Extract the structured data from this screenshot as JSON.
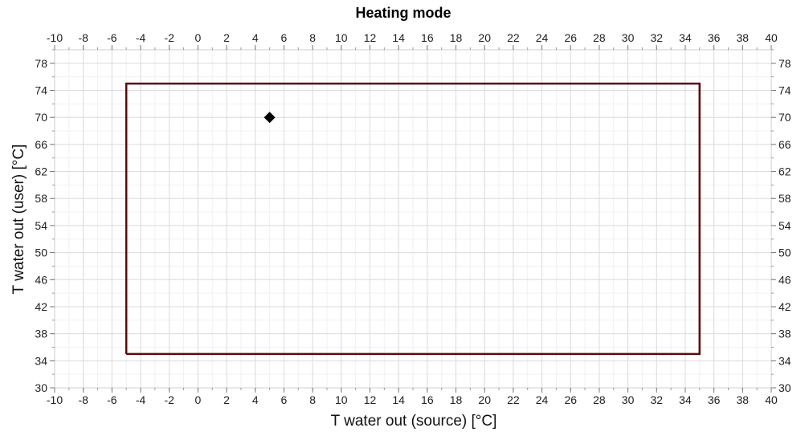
{
  "chart_data": {
    "type": "scatter",
    "title": "Heating mode",
    "xlabel": "T water out (source) [°C]",
    "ylabel": "T water out (user) [°C]",
    "xlim": [
      -10,
      40
    ],
    "ylim": [
      30,
      80
    ],
    "x_ticks": [
      -10,
      -8,
      -6,
      -4,
      -2,
      0,
      2,
      4,
      6,
      8,
      10,
      12,
      14,
      16,
      18,
      20,
      22,
      24,
      26,
      28,
      30,
      32,
      34,
      36,
      38,
      40
    ],
    "y_ticks": [
      30,
      34,
      38,
      42,
      46,
      50,
      54,
      58,
      62,
      66,
      70,
      74,
      78
    ],
    "x_minor_step": 1,
    "y_minor_step": 2,
    "grid": true,
    "top_axis": true,
    "right_axis": true,
    "envelope": {
      "x": [
        -5,
        35,
        35,
        -5,
        -5
      ],
      "y": [
        35,
        35,
        75,
        75,
        35
      ],
      "color": "#5a0a0a"
    },
    "points": [
      {
        "x": 5,
        "y": 70,
        "marker": "diamond",
        "color": "#000000"
      }
    ]
  }
}
